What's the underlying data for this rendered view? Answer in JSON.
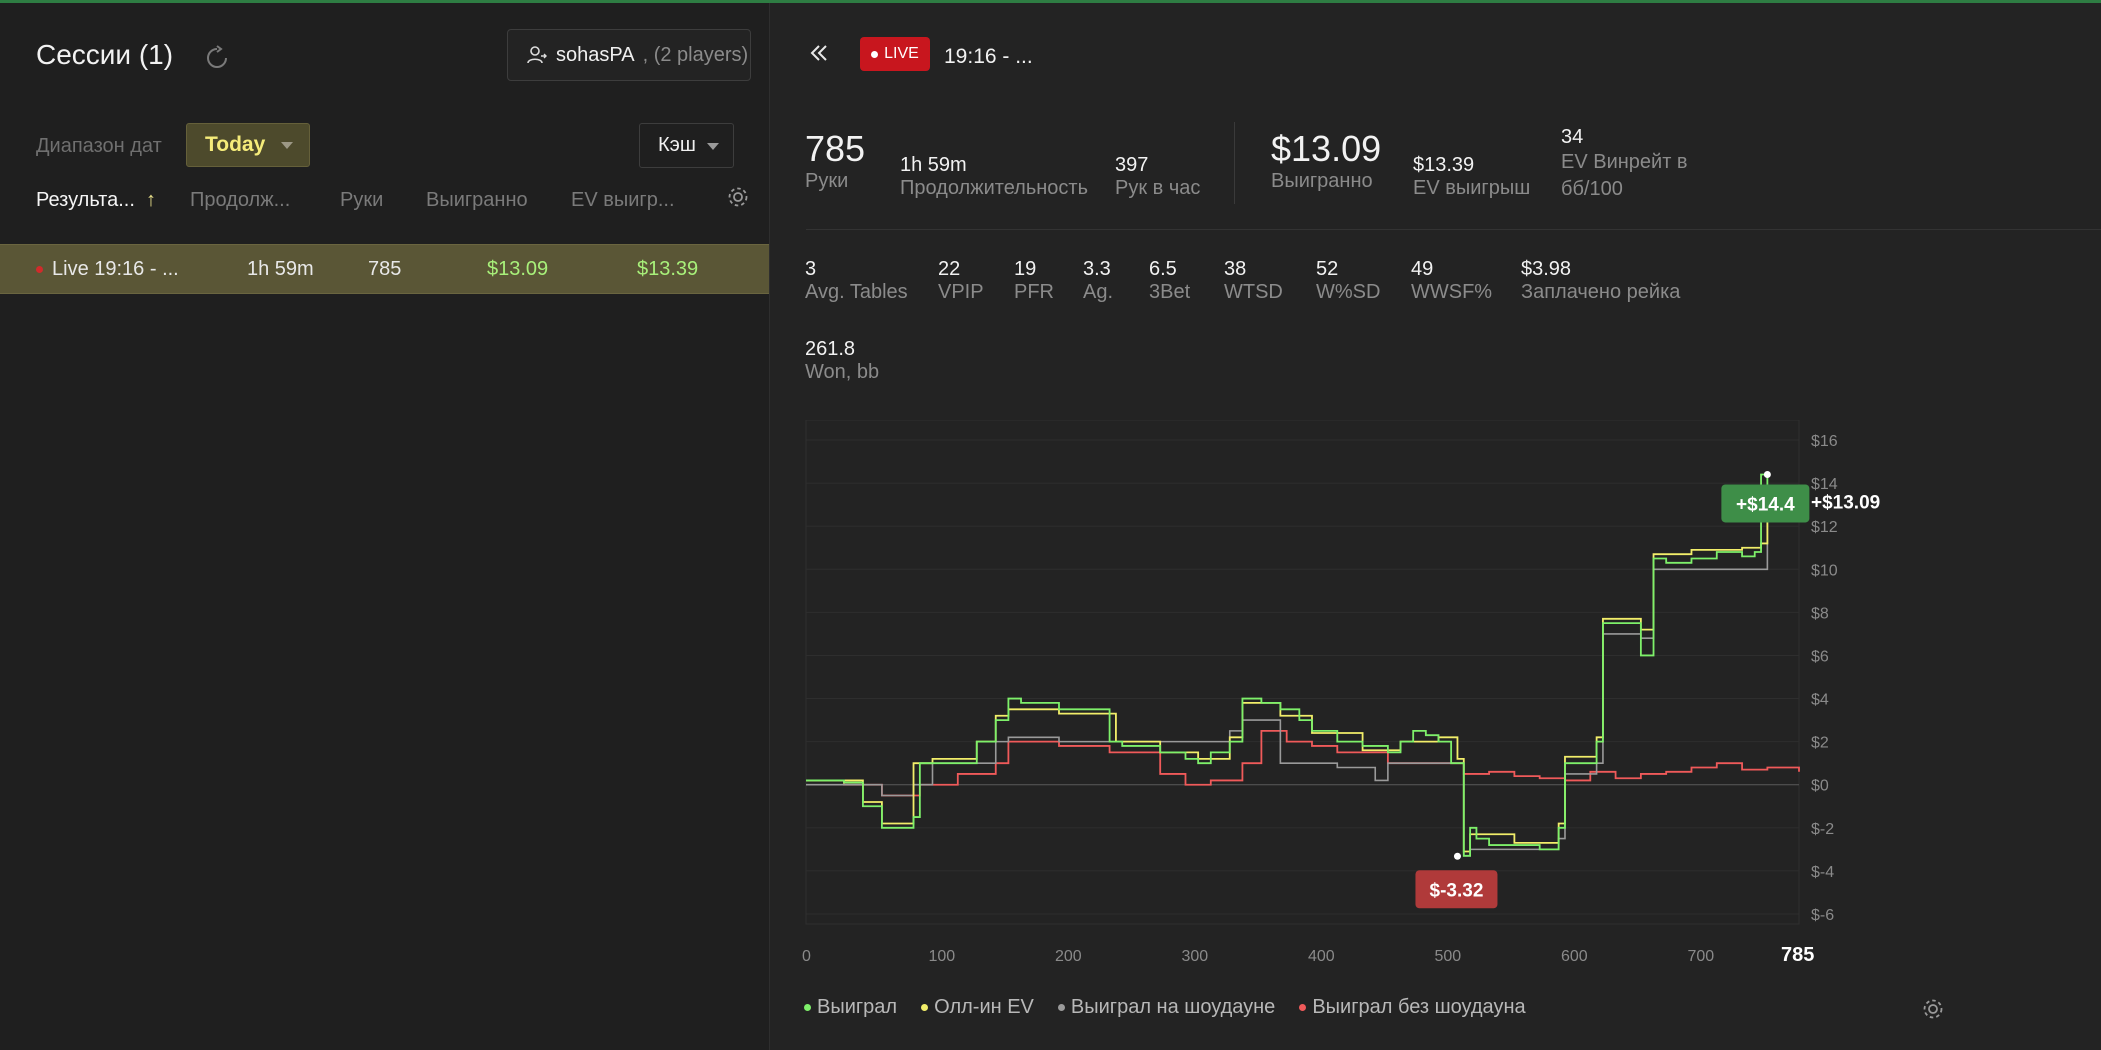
{
  "sessions_panel": {
    "title": "Сессии (1)",
    "player_name": "sohasPA",
    "player_count": ", (2 players)",
    "date_range_label": "Диапазон дат",
    "date_range_value": "Today",
    "game_type_value": "Кэш",
    "columns": [
      "Результа...",
      "Продолж...",
      "Руки",
      "Выигранно",
      "EV выигр..."
    ],
    "sort_arrow": "↑",
    "rows": [
      {
        "name": "Live 19:16 - ...",
        "duration": "1h 59m",
        "hands": "785",
        "won": "$13.09",
        "ev_won": "$13.39"
      }
    ]
  },
  "session_detail": {
    "live_label": "LIVE",
    "session_time": "19:16 - ...",
    "stats_top": [
      {
        "value": "785",
        "label": "Руки"
      },
      {
        "value": "1h 59m",
        "label": "Продолжительность"
      },
      {
        "value": "397",
        "label": "Рук в час"
      },
      {
        "value": "$13.09",
        "label": "Выигранно"
      },
      {
        "value": "$13.39",
        "label": "EV выигрыш"
      },
      {
        "value": "34",
        "label": "EV Винрейт в бб/100"
      }
    ],
    "stats_mid": [
      {
        "value": "3",
        "label": "Avg. Tables"
      },
      {
        "value": "22",
        "label": "VPIP"
      },
      {
        "value": "19",
        "label": "PFR"
      },
      {
        "value": "3.3",
        "label": "Ag."
      },
      {
        "value": "6.5",
        "label": "3Bet"
      },
      {
        "value": "38",
        "label": "WTSD"
      },
      {
        "value": "52",
        "label": "W%SD"
      },
      {
        "value": "49",
        "label": "WWSF%"
      },
      {
        "value": "$3.98",
        "label": "Заплачено рейка"
      }
    ],
    "stats_bottom": [
      {
        "value": "261.8",
        "label": "Won, bb"
      }
    ]
  },
  "colors": {
    "won": "#7ef06a",
    "allin_ev": "#f2ee6a",
    "showdown": "#9a9a9a",
    "non_showdown": "#f05a5a",
    "max_badge": "#3e8e48",
    "min_badge": "#b03a3a"
  },
  "chart_data": {
    "type": "line",
    "xlabel": "",
    "ylabel": "",
    "x_ticks": [
      "0",
      "100",
      "200",
      "300",
      "400",
      "500",
      "600",
      "700"
    ],
    "x_end_label": "785",
    "y_ticks": [
      "$16",
      "$14",
      "$12",
      "$10",
      "$8",
      "$6",
      "$4",
      "$2",
      "$0",
      "$-2",
      "$-4",
      "$-6"
    ],
    "xlim": [
      0,
      785
    ],
    "ylim": [
      -6,
      16
    ],
    "max_label": "+$14.4",
    "min_label": "$-3.32",
    "final_label": "+$13.09",
    "series": [
      {
        "name": "Выиграл",
        "x": [
          0,
          30,
          45,
          60,
          70,
          85,
          90,
          100,
          130,
          135,
          150,
          160,
          170,
          200,
          240,
          245,
          250,
          280,
          300,
          310,
          320,
          335,
          345,
          360,
          375,
          390,
          400,
          420,
          440,
          460,
          470,
          480,
          490,
          500,
          510,
          515,
          520,
          525,
          530,
          540,
          560,
          580,
          590,
          595,
          600,
          620,
          625,
          630,
          660,
          670,
          680,
          700,
          720,
          740,
          750,
          755,
          760,
          785
        ],
        "y": [
          0.2,
          0.1,
          -1,
          -2,
          -2,
          -1.5,
          1,
          1,
          1,
          2,
          3,
          4,
          3.8,
          3.5,
          2,
          2,
          1.8,
          1.5,
          1.2,
          1,
          1.5,
          2,
          4,
          3.8,
          3.5,
          3,
          2.5,
          2,
          1.8,
          1.5,
          2,
          2.5,
          2.3,
          2,
          1,
          1,
          -3.3,
          -2,
          -2.5,
          -2.8,
          -2.8,
          -3,
          -3,
          -2,
          1,
          1,
          2,
          7.5,
          6,
          10.5,
          10.3,
          10.5,
          10.8,
          10.6,
          10.8,
          14.4,
          13.1,
          13.1
        ]
      },
      {
        "name": "Олл-ин EV",
        "x": [
          0,
          45,
          60,
          85,
          100,
          135,
          150,
          160,
          200,
          245,
          280,
          310,
          335,
          345,
          375,
          400,
          440,
          470,
          500,
          515,
          520,
          525,
          560,
          595,
          600,
          625,
          630,
          660,
          670,
          700,
          740,
          755,
          760,
          785
        ],
        "y": [
          0.2,
          -0.8,
          -1.8,
          1,
          1.2,
          2,
          3.2,
          3.5,
          3.3,
          2,
          1.5,
          1.2,
          2.2,
          3.8,
          3.2,
          2.4,
          1.6,
          2,
          2.2,
          1.2,
          -3.1,
          -2.3,
          -2.7,
          -1.8,
          1.3,
          2.2,
          7.7,
          7.2,
          10.7,
          10.9,
          11,
          11.2,
          13.5,
          13.4
        ]
      },
      {
        "name": "Выиграл на шоудауне",
        "x": [
          0,
          60,
          85,
          100,
          150,
          160,
          200,
          245,
          300,
          320,
          335,
          345,
          360,
          375,
          400,
          420,
          450,
          460,
          470,
          500,
          515,
          520,
          525,
          560,
          595,
          600,
          625,
          630,
          660,
          670,
          700,
          755,
          760,
          785
        ],
        "y": [
          0,
          -0.5,
          0,
          1,
          2,
          2.2,
          2,
          2,
          2,
          2,
          2.5,
          3,
          3,
          1,
          1,
          0.8,
          0.2,
          1,
          1,
          1,
          1,
          -3.3,
          -3,
          -3,
          -2.5,
          0.5,
          1,
          7,
          6.8,
          10,
          10,
          10,
          13,
          13
        ]
      },
      {
        "name": "Выиграл без шоудауна",
        "x": [
          0,
          30,
          60,
          90,
          120,
          150,
          160,
          200,
          240,
          280,
          300,
          320,
          345,
          360,
          380,
          400,
          420,
          440,
          460,
          480,
          500,
          520,
          540,
          560,
          580,
          600,
          620,
          640,
          660,
          680,
          700,
          720,
          740,
          760,
          785
        ],
        "y": [
          0.2,
          0,
          -0.5,
          0,
          0.5,
          1,
          2,
          1.8,
          1.5,
          0.5,
          0,
          0.2,
          1,
          2.5,
          2,
          1.8,
          1.5,
          1.5,
          1,
          1,
          1,
          0.5,
          0.6,
          0.4,
          0.3,
          0.2,
          0.6,
          0.3,
          0.5,
          0.6,
          0.8,
          1,
          0.7,
          0.8,
          0.6
        ]
      }
    ]
  }
}
